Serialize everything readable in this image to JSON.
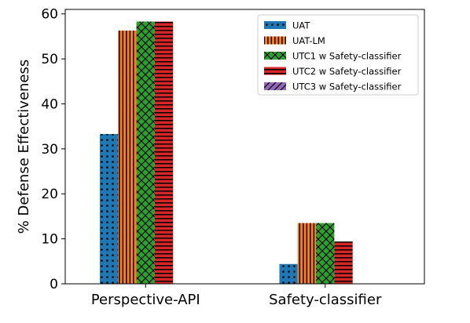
{
  "chart_data": {
    "type": "bar",
    "categories": [
      "Perspective-API",
      "Safety-classifier"
    ],
    "series": [
      {
        "name": "UAT",
        "values": [
          33.3,
          4.4
        ],
        "color": "#1f77b4",
        "pattern": "dots"
      },
      {
        "name": "UAT-LM",
        "values": [
          56.3,
          13.5
        ],
        "color": "#ff7f0e",
        "pattern": "vertical-lines"
      },
      {
        "name": "UTC1 w Safety-classifier",
        "values": [
          58.3,
          13.5
        ],
        "color": "#2ca02c",
        "pattern": "crosshatch"
      },
      {
        "name": "UTC2 w Safety-classifier",
        "values": [
          58.3,
          9.4
        ],
        "color": "#d62728",
        "pattern": "horizontal-lines"
      },
      {
        "name": "UTC3 w Safety-classifier",
        "values": [
          null,
          null
        ],
        "color": "#9467bd",
        "pattern": "diagonal-lines"
      }
    ],
    "xlabel": "",
    "ylabel": "% Defense Effectiveness",
    "ylim": [
      0,
      61
    ],
    "yticks": [
      0,
      10,
      20,
      30,
      40,
      50,
      60
    ],
    "grid": false,
    "legend_position": "top-right"
  }
}
